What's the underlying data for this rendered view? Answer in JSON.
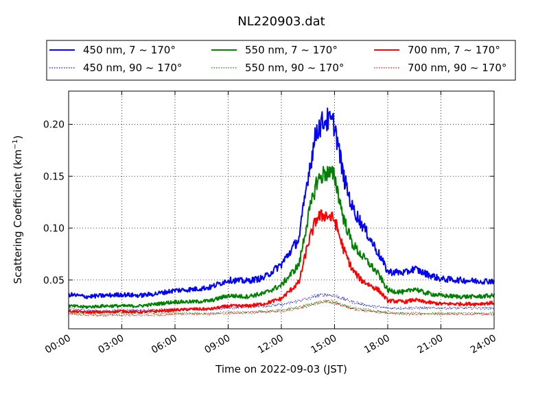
{
  "chart_data": {
    "type": "line",
    "title": "NL220903.dat",
    "xlabel": "Time on 2022-09-03 (JST)",
    "ylabel_main": "Scattering Coefficient (km",
    "ylabel_sup": "−1",
    "ylabel_close": ")",
    "xlim": [
      "2022-09-03 00:00",
      "2022-09-04 00:00"
    ],
    "ylim": [
      0.003,
      0.232
    ],
    "x_ticks": [
      "00:00",
      "03:00",
      "06:00",
      "09:00",
      "12:00",
      "15:00",
      "18:00",
      "21:00",
      "24:00"
    ],
    "x_tick_hours": [
      0,
      3,
      6,
      9,
      12,
      15,
      18,
      21,
      24
    ],
    "y_ticks": [
      "0.05",
      "0.10",
      "0.15",
      "0.20"
    ],
    "y_tick_values": [
      0.05,
      0.1,
      0.15,
      0.2
    ],
    "grid": true,
    "legend_placement": "top, outside plot, 3 columns",
    "x_hours": [
      0,
      1,
      2,
      3,
      4,
      5,
      6,
      7,
      8,
      9,
      10,
      11,
      12,
      13,
      13.5,
      14,
      14.5,
      15,
      15.5,
      16,
      16.5,
      17,
      17.5,
      18,
      19,
      19.5,
      20,
      21,
      22,
      23,
      24
    ],
    "series": [
      {
        "name": "450 nm, 7 ~ 170°",
        "color": "#0000ff",
        "style": "solid",
        "values": [
          0.036,
          0.034,
          0.035,
          0.036,
          0.035,
          0.037,
          0.04,
          0.041,
          0.043,
          0.05,
          0.049,
          0.052,
          0.065,
          0.09,
          0.15,
          0.195,
          0.205,
          0.2,
          0.15,
          0.12,
          0.105,
          0.09,
          0.075,
          0.058,
          0.057,
          0.061,
          0.057,
          0.051,
          0.05,
          0.049,
          0.049
        ]
      },
      {
        "name": "450 nm, 90 ~ 170°",
        "color": "#0000ff",
        "style": "dotted",
        "values": [
          0.022,
          0.021,
          0.02,
          0.021,
          0.021,
          0.021,
          0.022,
          0.022,
          0.022,
          0.023,
          0.024,
          0.025,
          0.026,
          0.03,
          0.032,
          0.035,
          0.036,
          0.035,
          0.032,
          0.029,
          0.027,
          0.025,
          0.024,
          0.023,
          0.023,
          0.023,
          0.023,
          0.023,
          0.023,
          0.023,
          0.023
        ]
      },
      {
        "name": "550 nm, 7 ~ 170°",
        "color": "#008000",
        "style": "solid",
        "values": [
          0.025,
          0.024,
          0.025,
          0.025,
          0.025,
          0.027,
          0.029,
          0.029,
          0.03,
          0.035,
          0.034,
          0.037,
          0.045,
          0.065,
          0.11,
          0.145,
          0.154,
          0.15,
          0.11,
          0.085,
          0.074,
          0.065,
          0.055,
          0.04,
          0.038,
          0.042,
          0.038,
          0.035,
          0.034,
          0.034,
          0.035
        ]
      },
      {
        "name": "550 nm, 90 ~ 170°",
        "color": "#008000",
        "style": "dotted",
        "values": [
          0.018,
          0.018,
          0.017,
          0.018,
          0.018,
          0.018,
          0.018,
          0.018,
          0.018,
          0.019,
          0.019,
          0.02,
          0.021,
          0.024,
          0.026,
          0.028,
          0.03,
          0.029,
          0.026,
          0.023,
          0.022,
          0.021,
          0.02,
          0.019,
          0.018,
          0.018,
          0.018,
          0.018,
          0.018,
          0.018,
          0.018
        ]
      },
      {
        "name": "700 nm, 7 ~ 170°",
        "color": "#ff0000",
        "style": "solid",
        "values": [
          0.02,
          0.019,
          0.019,
          0.02,
          0.019,
          0.02,
          0.021,
          0.022,
          0.022,
          0.025,
          0.025,
          0.027,
          0.032,
          0.048,
          0.085,
          0.11,
          0.113,
          0.108,
          0.08,
          0.06,
          0.05,
          0.045,
          0.04,
          0.03,
          0.029,
          0.031,
          0.029,
          0.027,
          0.027,
          0.027,
          0.028
        ]
      },
      {
        "name": "700 nm, 90 ~ 170°",
        "color": "#ff0000",
        "style": "dotted",
        "values": [
          0.017,
          0.016,
          0.016,
          0.016,
          0.016,
          0.016,
          0.017,
          0.017,
          0.017,
          0.018,
          0.018,
          0.019,
          0.02,
          0.023,
          0.025,
          0.028,
          0.029,
          0.028,
          0.025,
          0.022,
          0.021,
          0.02,
          0.019,
          0.018,
          0.017,
          0.017,
          0.017,
          0.017,
          0.017,
          0.017,
          0.017
        ]
      }
    ]
  }
}
